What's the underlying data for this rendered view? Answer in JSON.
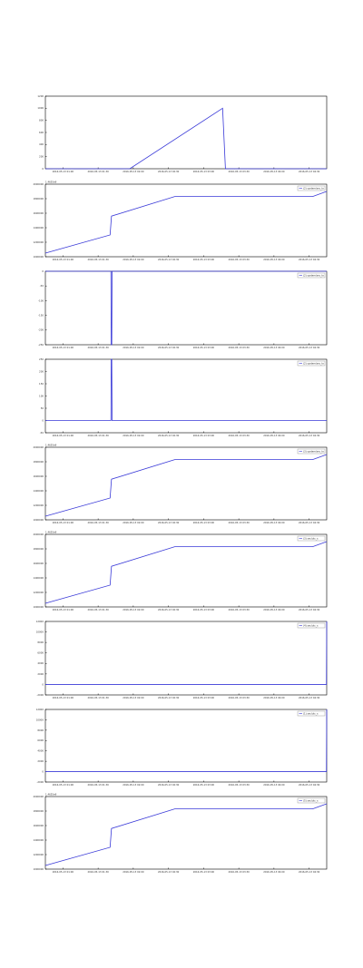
{
  "colors": {
    "series": "#3a3ad8",
    "axes": "#000000"
  },
  "x_tick_labels": [
    "2016-05-13 01:00",
    "2016-05-13 01:30",
    "2016-05-13 02:00",
    "2016-05-13 02:30",
    "2016-05-13 03:00",
    "2016-05-13 03:30",
    "2016-05-13 04:00",
    "2016-05-13 04:30"
  ],
  "chart_data": [
    {
      "type": "line",
      "offset_text": "",
      "legend": "",
      "yticks": [
        "0",
        "200",
        "400",
        "600",
        "800",
        "1000",
        "1200"
      ],
      "ylim": [
        0,
        1200
      ],
      "x": [
        0,
        0.3,
        0.63,
        0.64,
        1.0
      ],
      "y": [
        0,
        0,
        1000,
        0,
        0
      ]
    },
    {
      "type": "line",
      "offset_text": "1.4655e9",
      "legend": "(2) system/sec_to",
      "yticks": [
        "1000000",
        "1200000",
        "1400000",
        "1600000",
        "1800000",
        "2000000"
      ],
      "ylim": [
        1000000,
        2000000
      ],
      "x": [
        0,
        0.23,
        0.235,
        0.46,
        0.95,
        1.0
      ],
      "y": [
        1050000,
        1300000,
        1560000,
        1830000,
        1830000,
        1900000
      ]
    },
    {
      "type": "line",
      "offset_text": "",
      "legend": "(2) system/sec_to",
      "yticks": [
        "-250",
        "-200",
        "-150",
        "-100",
        "-50",
        "0"
      ],
      "ylim": [
        -250,
        0
      ],
      "x": [
        0,
        0.233,
        0.234,
        0.236,
        0.237,
        1.0
      ],
      "y": [
        0,
        0,
        -250,
        -250,
        0,
        0
      ]
    },
    {
      "type": "line",
      "offset_text": "",
      "legend": "(2) system/sec_to",
      "yticks": [
        "-50",
        "0",
        "50",
        "100",
        "150",
        "200",
        "250"
      ],
      "ylim": [
        -50,
        250
      ],
      "x": [
        0,
        0.233,
        0.234,
        0.236,
        0.237,
        1.0
      ],
      "y": [
        0,
        0,
        250,
        250,
        0,
        0
      ]
    },
    {
      "type": "line",
      "offset_text": "1.4655e9",
      "legend": "(3) system/sec_to",
      "yticks": [
        "1000000",
        "1200000",
        "1400000",
        "1600000",
        "1800000",
        "2000000"
      ],
      "ylim": [
        1000000,
        2000000
      ],
      "x": [
        0,
        0.23,
        0.235,
        0.46,
        0.95,
        1.0
      ],
      "y": [
        1050000,
        1300000,
        1560000,
        1830000,
        1830000,
        1900000
      ]
    },
    {
      "type": "line",
      "offset_text": "1.4655e9",
      "legend": "(3) sec/utc_s",
      "yticks": [
        "1000000",
        "1200000",
        "1400000",
        "1600000",
        "1800000",
        "2000000"
      ],
      "ylim": [
        1000000,
        2000000
      ],
      "x": [
        0,
        0.23,
        0.235,
        0.46,
        0.95,
        1.0
      ],
      "y": [
        1050000,
        1300000,
        1560000,
        1830000,
        1830000,
        1900000
      ]
    },
    {
      "type": "line",
      "offset_text": "",
      "legend": "(4) sec/utc_s",
      "yticks": [
        "-2000",
        "0",
        "2000",
        "4000",
        "6000",
        "8000",
        "10000",
        "12000"
      ],
      "ylim": [
        -2000,
        12000
      ],
      "x": [
        0,
        0.999,
        1.0
      ],
      "y": [
        0,
        0,
        12000
      ]
    },
    {
      "type": "line",
      "offset_text": "",
      "legend": "(1) sec/utc_s",
      "yticks": [
        "-2000",
        "0",
        "2000",
        "4000",
        "6000",
        "8000",
        "10000",
        "12000"
      ],
      "ylim": [
        -2000,
        12000
      ],
      "x": [
        0,
        0.999,
        1.0
      ],
      "y": [
        0,
        0,
        12000
      ]
    },
    {
      "type": "line",
      "offset_text": "1.4655e9",
      "legend": "(5) sec/utc_s",
      "yticks": [
        "1000000",
        "1200000",
        "1400000",
        "1600000",
        "1800000",
        "2000000"
      ],
      "ylim": [
        1000000,
        2000000
      ],
      "x": [
        0,
        0.23,
        0.235,
        0.46,
        0.95,
        1.0
      ],
      "y": [
        1050000,
        1300000,
        1560000,
        1830000,
        1830000,
        1900000
      ]
    }
  ]
}
